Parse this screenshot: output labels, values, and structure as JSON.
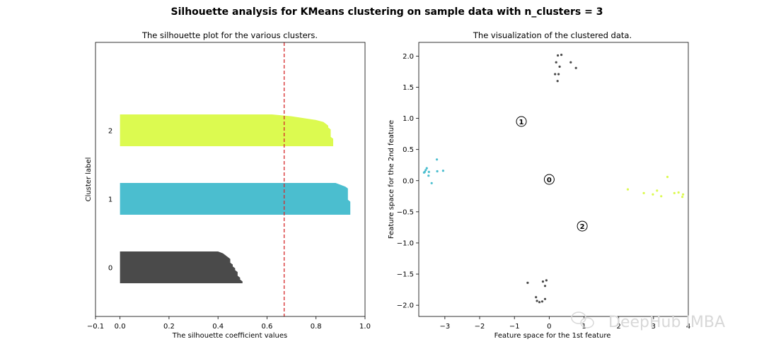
{
  "suptitle": "Silhouette analysis for KMeans clustering on sample data with n_clusters = 3",
  "watermark": "DeepHub IMBA",
  "chart_data": [
    {
      "type": "area",
      "title": "The silhouette plot for the various clusters.",
      "xlabel": "The silhouette coefficient values",
      "ylabel": "Cluster label",
      "xlim": [
        -0.1,
        1.0
      ],
      "xticks": [
        -0.1,
        0.0,
        0.2,
        0.4,
        0.6,
        0.8,
        1.0
      ],
      "xtick_labels": [
        "−0.1",
        "0.0",
        "0.2",
        "0.4",
        "0.6",
        "0.8",
        "1.0"
      ],
      "average_silhouette": 0.67,
      "clusters": [
        {
          "label": "0",
          "color": "#4a4a4a",
          "values": [
            0.5,
            0.5,
            0.49,
            0.49,
            0.48,
            0.48,
            0.48,
            0.47,
            0.47,
            0.46,
            0.46,
            0.45,
            0.45,
            0.45,
            0.44,
            0.43,
            0.42,
            0.4
          ]
        },
        {
          "label": "1",
          "color": "#4bbecf",
          "values": [
            0.94,
            0.94,
            0.94,
            0.94,
            0.94,
            0.94,
            0.94,
            0.94,
            0.93,
            0.93,
            0.93,
            0.93,
            0.93,
            0.93,
            0.93,
            0.92,
            0.9,
            0.88
          ]
        },
        {
          "label": "2",
          "color": "#dcfa50",
          "values": [
            0.87,
            0.87,
            0.87,
            0.87,
            0.87,
            0.86,
            0.86,
            0.86,
            0.86,
            0.86,
            0.85,
            0.85,
            0.84,
            0.83,
            0.8,
            0.75,
            0.7,
            0.62
          ]
        }
      ]
    },
    {
      "type": "scatter",
      "title": "The visualization of the clustered data.",
      "xlabel": "Feature space for the 1st feature",
      "ylabel": "Feature space for the 2nd feature",
      "xlim": [
        -3.75,
        4.0
      ],
      "ylim": [
        -2.18,
        2.22
      ],
      "xticks": [
        -3,
        -2,
        -1,
        0,
        1,
        2,
        3,
        4
      ],
      "xtick_labels": [
        "−3",
        "−2",
        "−1",
        "0",
        "1",
        "2",
        "3",
        "4"
      ],
      "yticks": [
        -2.0,
        -1.5,
        -1.0,
        -0.5,
        0.0,
        0.5,
        1.0,
        1.5,
        2.0
      ],
      "ytick_labels": [
        "−2.0",
        "−1.5",
        "−1.0",
        "−0.5",
        "0.0",
        "0.5",
        "1.0",
        "1.5",
        "2.0"
      ],
      "points": [
        {
          "x": 0.25,
          "y": 2.01,
          "color": "#4a4a4a"
        },
        {
          "x": 0.35,
          "y": 2.02,
          "color": "#4a4a4a"
        },
        {
          "x": 0.2,
          "y": 1.9,
          "color": "#4a4a4a"
        },
        {
          "x": 0.3,
          "y": 1.83,
          "color": "#4a4a4a"
        },
        {
          "x": 0.62,
          "y": 1.9,
          "color": "#4a4a4a"
        },
        {
          "x": 0.77,
          "y": 1.81,
          "color": "#4a4a4a"
        },
        {
          "x": 0.17,
          "y": 1.71,
          "color": "#4a4a4a"
        },
        {
          "x": 0.27,
          "y": 1.71,
          "color": "#4a4a4a"
        },
        {
          "x": 0.24,
          "y": 1.6,
          "color": "#4a4a4a"
        },
        {
          "x": -0.62,
          "y": -1.64,
          "color": "#4a4a4a"
        },
        {
          "x": -0.18,
          "y": -1.62,
          "color": "#4a4a4a"
        },
        {
          "x": -0.08,
          "y": -1.6,
          "color": "#4a4a4a"
        },
        {
          "x": -0.12,
          "y": -1.69,
          "color": "#4a4a4a"
        },
        {
          "x": -0.38,
          "y": -1.87,
          "color": "#4a4a4a"
        },
        {
          "x": -0.35,
          "y": -1.93,
          "color": "#4a4a4a"
        },
        {
          "x": -0.28,
          "y": -1.95,
          "color": "#4a4a4a"
        },
        {
          "x": -0.2,
          "y": -1.94,
          "color": "#4a4a4a"
        },
        {
          "x": -0.12,
          "y": -1.9,
          "color": "#4a4a4a"
        },
        {
          "x": -3.58,
          "y": 0.14,
          "color": "#4bbecf"
        },
        {
          "x": -3.55,
          "y": 0.17,
          "color": "#4bbecf"
        },
        {
          "x": -3.52,
          "y": 0.2,
          "color": "#4bbecf"
        },
        {
          "x": -3.6,
          "y": 0.13,
          "color": "#4bbecf"
        },
        {
          "x": -3.46,
          "y": 0.14,
          "color": "#4bbecf"
        },
        {
          "x": -3.47,
          "y": 0.08,
          "color": "#4bbecf"
        },
        {
          "x": -3.38,
          "y": -0.04,
          "color": "#4bbecf"
        },
        {
          "x": -3.23,
          "y": 0.34,
          "color": "#4bbecf"
        },
        {
          "x": -3.22,
          "y": 0.15,
          "color": "#4bbecf"
        },
        {
          "x": -3.05,
          "y": 0.16,
          "color": "#4bbecf"
        },
        {
          "x": 2.26,
          "y": -0.14,
          "color": "#dcfa50"
        },
        {
          "x": 2.72,
          "y": -0.2,
          "color": "#dcfa50"
        },
        {
          "x": 2.98,
          "y": -0.22,
          "color": "#dcfa50"
        },
        {
          "x": 3.1,
          "y": -0.16,
          "color": "#dcfa50"
        },
        {
          "x": 3.22,
          "y": -0.25,
          "color": "#dcfa50"
        },
        {
          "x": 3.4,
          "y": 0.06,
          "color": "#dcfa50"
        },
        {
          "x": 3.6,
          "y": -0.2,
          "color": "#dcfa50"
        },
        {
          "x": 3.72,
          "y": -0.19,
          "color": "#dcfa50"
        },
        {
          "x": 3.83,
          "y": -0.26,
          "color": "#dcfa50"
        },
        {
          "x": 3.85,
          "y": -0.22,
          "color": "#dcfa50"
        }
      ],
      "centers": [
        {
          "label": "0",
          "x": 0.0,
          "y": 0.02
        },
        {
          "label": "1",
          "x": -0.8,
          "y": 0.95
        },
        {
          "label": "2",
          "x": 0.95,
          "y": -0.73
        }
      ]
    }
  ]
}
